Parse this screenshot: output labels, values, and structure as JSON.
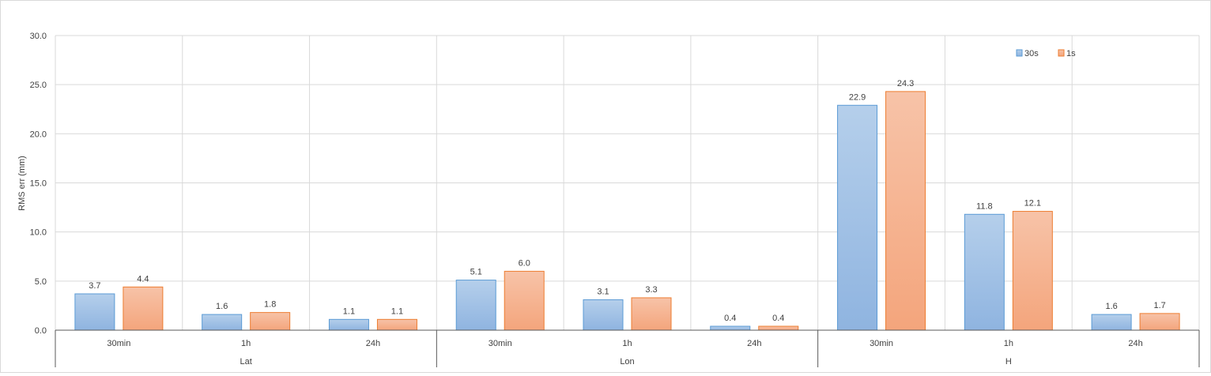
{
  "chart_data": {
    "type": "bar",
    "title": "",
    "ylabel": "RMS err (mm)",
    "xlabel": "",
    "ylim": [
      0,
      30
    ],
    "yticks": [
      "0.0",
      "5.0",
      "10.0",
      "15.0",
      "20.0",
      "25.0",
      "30.0"
    ],
    "grid": true,
    "legend_position": "top-right",
    "groups": [
      "Lat",
      "Lon",
      "H"
    ],
    "categories": [
      "30min",
      "1h",
      "24h",
      "30min",
      "1h",
      "24h",
      "30min",
      "1h",
      "24h"
    ],
    "series": [
      {
        "name": "30s",
        "color": "#9dc3e6",
        "values": [
          3.7,
          1.6,
          1.1,
          5.1,
          3.1,
          0.4,
          22.9,
          11.8,
          1.6
        ],
        "labels": [
          "3.7",
          "1.6",
          "1.1",
          "5.1",
          "3.1",
          "0.4",
          "22.9",
          "11.8",
          "1.6"
        ]
      },
      {
        "name": "1s",
        "color": "#f4b183",
        "values": [
          4.4,
          1.8,
          1.1,
          6.0,
          3.3,
          0.4,
          24.3,
          12.1,
          1.7
        ],
        "labels": [
          "4.4",
          "1.8",
          "1.1",
          "6.0",
          "3.3",
          "0.4",
          "24.3",
          "12.1",
          "1.7"
        ]
      }
    ]
  }
}
